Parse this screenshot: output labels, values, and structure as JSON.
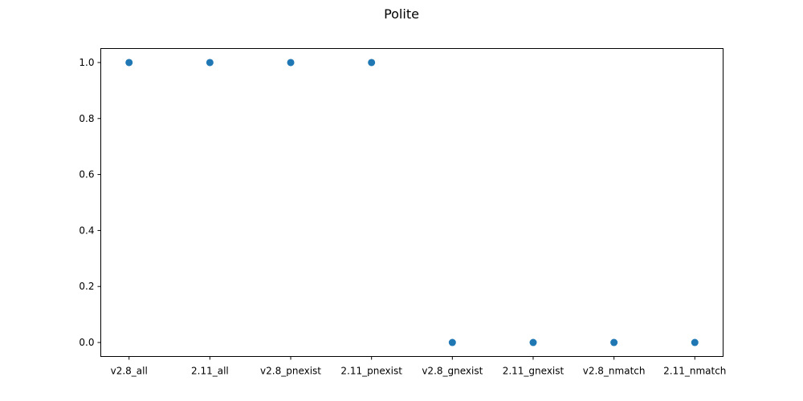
{
  "chart_data": {
    "type": "scatter",
    "title": "Polite",
    "xlabel": "",
    "ylabel": "",
    "categories": [
      "v2.8_all",
      "2.11_all",
      "v2.8_pnexist",
      "2.11_pnexist",
      "v2.8_gnexist",
      "2.11_gnexist",
      "v2.8_nmatch",
      "2.11_nmatch"
    ],
    "series": [
      {
        "values": [
          1.0,
          1.0,
          1.0,
          1.0,
          0.0,
          0.0,
          0.0,
          0.0
        ],
        "color": "#1f77b4"
      }
    ],
    "ylim": [
      -0.05,
      1.05
    ],
    "yticks": [
      0.0,
      0.2,
      0.4,
      0.6,
      0.8,
      1.0
    ],
    "ytick_labels": [
      "0.0",
      "0.2",
      "0.4",
      "0.6",
      "0.8",
      "1.0"
    ],
    "grid": false,
    "legend": "none"
  }
}
